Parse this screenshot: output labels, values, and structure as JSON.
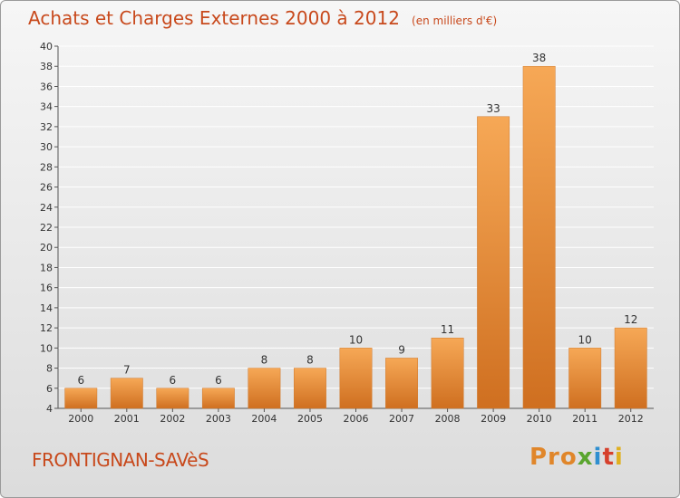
{
  "header": {
    "title": "Achats et Charges Externes 2000 à 2012",
    "unit": "(en milliers d'€)"
  },
  "footer": {
    "commune": "FRONTIGNAN-SAVèS",
    "logo": [
      "Pro",
      "x",
      "i",
      "t",
      "i"
    ]
  },
  "colors": {
    "title": "#c8491c",
    "bar_light": "#f6a856",
    "bar_dark": "#cf6f20",
    "grid": "#ffffff"
  },
  "chart_data": {
    "type": "bar",
    "title": "Achats et Charges Externes 2000 à 2012",
    "subtitle": "(en milliers d'€)",
    "categories": [
      "2000",
      "2001",
      "2002",
      "2003",
      "2004",
      "2005",
      "2006",
      "2007",
      "2008",
      "2009",
      "2010",
      "2011",
      "2012"
    ],
    "values": [
      6,
      7,
      6,
      6,
      8,
      8,
      10,
      9,
      11,
      33,
      38,
      10,
      12
    ],
    "data_labels": [
      "6",
      "7",
      "6",
      "6",
      "8",
      "8",
      "10",
      "9",
      "11",
      "33",
      "38",
      "10",
      "12"
    ],
    "ylim": [
      4,
      40
    ],
    "yticks": [
      4,
      6,
      8,
      10,
      12,
      14,
      16,
      18,
      20,
      22,
      24,
      26,
      28,
      30,
      32,
      34,
      36,
      38,
      40
    ],
    "grid": true,
    "xlabel": "",
    "ylabel": ""
  }
}
